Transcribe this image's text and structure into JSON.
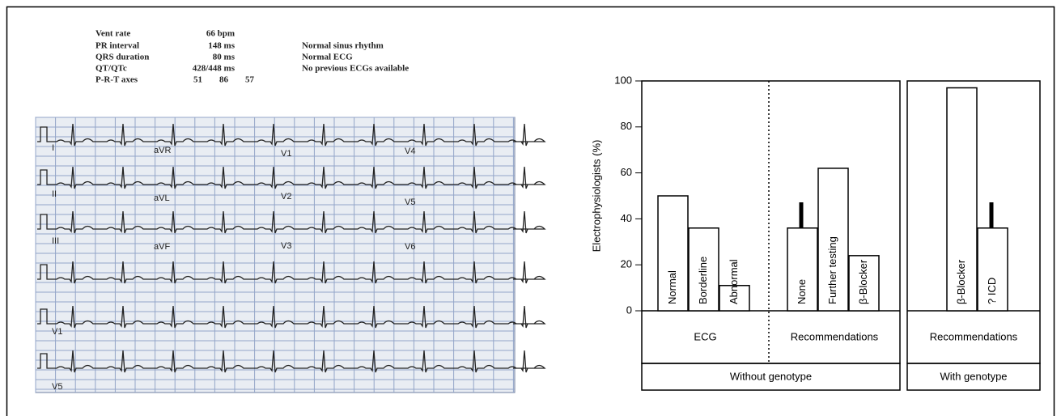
{
  "ecg": {
    "measure_labels": [
      "Vent rate",
      "PR interval",
      "QRS duration",
      "QT/QTc",
      "P-R-T axes"
    ],
    "measure_values": [
      "66 bpm",
      "148 ms",
      "80 ms",
      "428/448 ms"
    ],
    "axes": [
      "51",
      "86",
      "57"
    ],
    "interpretation": [
      "Normal sinus rhythm",
      "Normal ECG",
      "No previous ECGs available"
    ],
    "leads": [
      "I",
      "aVR",
      "V1",
      "V4",
      "II",
      "aVL",
      "V2",
      "V5",
      "III",
      "aVF",
      "V3",
      "V6",
      "V1",
      "V5"
    ]
  },
  "chart_data": {
    "type": "bar",
    "ylabel": "Electrophysiologists (%)",
    "ylim": [
      0,
      100
    ],
    "yticks": [
      0,
      20,
      40,
      60,
      80,
      100
    ],
    "color": "#ffffff",
    "panels": [
      {
        "label": "Without genotype",
        "groups": [
          {
            "label": "ECG",
            "categories": [
              "Normal",
              "Borderline",
              "Abnormal"
            ],
            "values": [
              50,
              36,
              11
            ]
          },
          {
            "label": "Recommendations",
            "categories": [
              "None",
              "Further testing",
              "β-Blocker"
            ],
            "values": [
              36,
              62,
              24
            ]
          }
        ]
      },
      {
        "label": "With genotype",
        "groups": [
          {
            "label": "Recommendations",
            "categories": [
              "β-Blocker",
              "? ICD"
            ],
            "values": [
              97,
              36
            ]
          }
        ]
      }
    ]
  }
}
